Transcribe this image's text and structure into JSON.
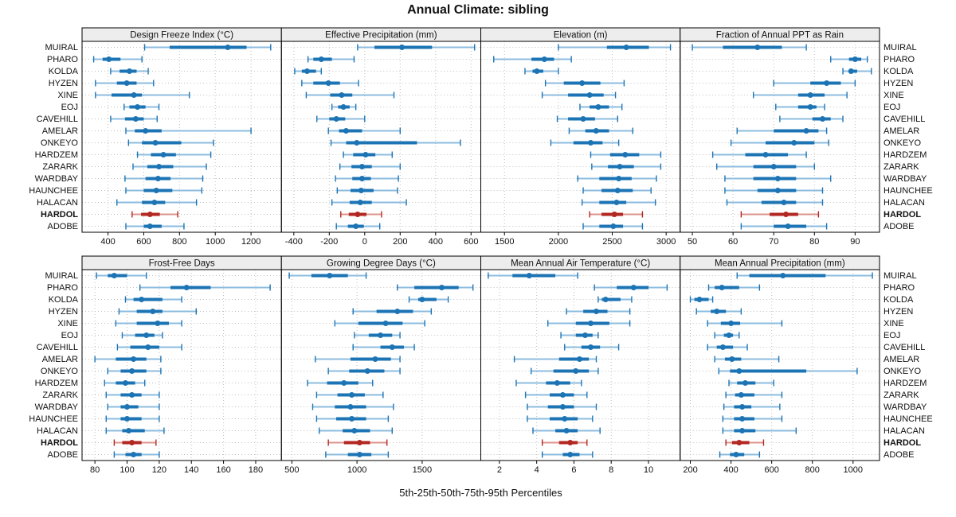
{
  "title": "Annual Climate: sibling",
  "xlabel": "5th-25th-50th-75th-95th Percentiles",
  "highlight_site": "HARDOL",
  "colors": {
    "series_blue": "#1c74b4",
    "series_blue_light": "#8dbcdf",
    "series_red": "#b22722",
    "series_red_light": "#dd938e",
    "strip_bg": "#ededed",
    "panel_border": "#000000",
    "grid": "#bfbfbf",
    "text": "#111111"
  },
  "sites": [
    "MUIRAL",
    "PHARO",
    "KOLDA",
    "HYZEN",
    "XINE",
    "EOJ",
    "CAVEHILL",
    "AMELAR",
    "ONKEYO",
    "HARDZEM",
    "ZARARK",
    "WARDBAY",
    "HAUNCHEE",
    "HALACAN",
    "HARDOL",
    "ADOBE"
  ],
  "chart_data": {
    "type": "dotplot-percentile-trellis",
    "percentile_order": [
      "p5",
      "p25",
      "p50",
      "p75",
      "p95"
    ],
    "layout": {
      "rows": 2,
      "cols": 4,
      "grid": "dotted",
      "y_labels_left_col": 0,
      "y_labels_right_col": 3
    },
    "panels": [
      {
        "strip_label": "Design Freeze Index (°C)",
        "xlim": [
          255,
          1370
        ],
        "ticks": [
          400,
          600,
          800,
          1000,
          1200
        ],
        "values": [
          [
            605,
            745,
            1070,
            1175,
            1310
          ],
          [
            320,
            370,
            405,
            470,
            590
          ],
          [
            415,
            465,
            520,
            560,
            625
          ],
          [
            330,
            450,
            505,
            560,
            655
          ],
          [
            330,
            420,
            545,
            590,
            855
          ],
          [
            490,
            520,
            565,
            610,
            685
          ],
          [
            415,
            495,
            555,
            600,
            675
          ],
          [
            500,
            550,
            610,
            700,
            1200
          ],
          [
            515,
            590,
            665,
            810,
            990
          ],
          [
            565,
            640,
            710,
            780,
            975
          ],
          [
            540,
            620,
            685,
            765,
            950
          ],
          [
            495,
            610,
            680,
            750,
            930
          ],
          [
            500,
            600,
            670,
            760,
            925
          ],
          [
            450,
            590,
            660,
            720,
            895
          ],
          [
            535,
            585,
            635,
            690,
            790
          ],
          [
            500,
            600,
            635,
            700,
            825
          ]
        ]
      },
      {
        "strip_label": "Effective Precipitation (mm)",
        "xlim": [
          -470,
          655
        ],
        "ticks": [
          -400,
          -200,
          0,
          200,
          400,
          600
        ],
        "values": [
          [
            -40,
            55,
            210,
            380,
            620
          ],
          [
            -320,
            -290,
            -245,
            -185,
            -60
          ],
          [
            -395,
            -355,
            -325,
            -275,
            -245
          ],
          [
            -355,
            -290,
            -205,
            -140,
            -35
          ],
          [
            -330,
            -195,
            -130,
            -70,
            165
          ],
          [
            -185,
            -150,
            -120,
            -85,
            -50
          ],
          [
            -270,
            -200,
            -160,
            -110,
            0
          ],
          [
            -205,
            -145,
            -105,
            -15,
            200
          ],
          [
            -190,
            -105,
            -45,
            295,
            540
          ],
          [
            -120,
            -65,
            5,
            60,
            155
          ],
          [
            -140,
            -75,
            -15,
            40,
            200
          ],
          [
            -165,
            -70,
            -15,
            35,
            190
          ],
          [
            -155,
            -80,
            -20,
            50,
            185
          ],
          [
            -185,
            -85,
            -25,
            40,
            235
          ],
          [
            -135,
            -90,
            -40,
            10,
            95
          ],
          [
            -160,
            -95,
            -50,
            -5,
            85
          ]
        ]
      },
      {
        "strip_label": "Elevation (m)",
        "xlim": [
          1280,
          3130
        ],
        "ticks": [
          1500,
          2000,
          2500,
          3000
        ],
        "values": [
          [
            2000,
            2450,
            2630,
            2840,
            3040
          ],
          [
            1400,
            1750,
            1870,
            1960,
            2120
          ],
          [
            1690,
            1760,
            1800,
            1860,
            2000
          ],
          [
            1880,
            2050,
            2220,
            2390,
            2610
          ],
          [
            1850,
            2090,
            2290,
            2420,
            2530
          ],
          [
            2200,
            2290,
            2370,
            2470,
            2590
          ],
          [
            1990,
            2090,
            2230,
            2340,
            2550
          ],
          [
            2100,
            2250,
            2350,
            2470,
            2690
          ],
          [
            1930,
            2140,
            2300,
            2410,
            2560
          ],
          [
            2300,
            2480,
            2620,
            2750,
            2950
          ],
          [
            2310,
            2460,
            2570,
            2700,
            2950
          ],
          [
            2180,
            2380,
            2560,
            2680,
            2910
          ],
          [
            2230,
            2400,
            2550,
            2690,
            2860
          ],
          [
            2220,
            2380,
            2540,
            2630,
            2900
          ],
          [
            2290,
            2400,
            2520,
            2600,
            2780
          ],
          [
            2230,
            2380,
            2510,
            2600,
            2780
          ]
        ]
      },
      {
        "strip_label": "Fraction of Annual PPT as Rain",
        "xlim": [
          47,
          96
        ],
        "ticks": [
          50,
          60,
          70,
          80,
          90
        ],
        "values": [
          [
            50,
            57.5,
            66,
            72,
            78
          ],
          [
            84,
            88.5,
            90,
            91.5,
            93
          ],
          [
            87,
            88.5,
            89,
            90.5,
            94
          ],
          [
            70,
            79,
            83,
            86.5,
            90
          ],
          [
            65,
            76,
            79,
            82.5,
            88
          ],
          [
            70.5,
            76,
            79,
            80.5,
            82.5
          ],
          [
            71.5,
            79.5,
            82,
            84,
            87
          ],
          [
            61,
            70,
            78,
            81,
            83
          ],
          [
            59.5,
            68,
            75,
            80,
            83.5
          ],
          [
            55,
            63,
            68,
            73.5,
            78
          ],
          [
            56,
            65,
            70,
            75.5,
            80
          ],
          [
            58,
            65,
            71,
            75.5,
            84
          ],
          [
            58,
            66,
            71,
            75.5,
            82
          ],
          [
            58.5,
            67,
            72.5,
            75.5,
            82
          ],
          [
            62,
            69,
            73,
            76,
            81
          ],
          [
            62,
            70,
            73.5,
            78,
            83
          ]
        ]
      },
      {
        "strip_label": "Frost-Free Days",
        "xlim": [
          72,
          196
        ],
        "ticks": [
          80,
          100,
          120,
          140,
          160,
          180
        ],
        "values": [
          [
            81,
            88,
            92,
            100,
            112
          ],
          [
            108,
            127,
            137,
            152,
            189
          ],
          [
            99,
            104,
            109,
            122,
            134
          ],
          [
            95,
            106,
            116,
            122,
            143
          ],
          [
            93,
            106,
            119,
            126,
            134
          ],
          [
            97,
            105,
            112,
            117,
            122
          ],
          [
            94,
            102,
            113,
            120,
            134
          ],
          [
            80,
            93,
            104,
            112,
            121
          ],
          [
            88,
            96,
            103,
            112,
            121
          ],
          [
            86,
            93,
            99,
            105,
            111
          ],
          [
            87,
            96,
            103,
            109,
            120
          ],
          [
            88,
            96,
            100,
            107,
            120
          ],
          [
            87,
            96,
            100,
            109,
            120
          ],
          [
            87,
            97,
            101,
            111,
            123
          ],
          [
            92,
            97,
            103,
            109,
            118
          ],
          [
            92,
            99,
            104,
            109,
            120
          ]
        ]
      },
      {
        "strip_label": "Growing Degree Days (°C)",
        "xlim": [
          420,
          1950
        ],
        "ticks": [
          500,
          1000,
          1500
        ],
        "values": [
          [
            480,
            650,
            790,
            930,
            1070
          ],
          [
            1310,
            1440,
            1650,
            1780,
            1890
          ],
          [
            1400,
            1470,
            1500,
            1610,
            1700
          ],
          [
            970,
            1150,
            1310,
            1430,
            1570
          ],
          [
            830,
            1010,
            1220,
            1350,
            1520
          ],
          [
            980,
            1090,
            1180,
            1270,
            1330
          ],
          [
            970,
            1180,
            1270,
            1360,
            1440
          ],
          [
            680,
            950,
            1140,
            1260,
            1330
          ],
          [
            780,
            940,
            1080,
            1210,
            1330
          ],
          [
            620,
            770,
            900,
            1010,
            1120
          ],
          [
            690,
            850,
            960,
            1060,
            1200
          ],
          [
            660,
            830,
            950,
            1070,
            1280
          ],
          [
            690,
            840,
            960,
            1070,
            1240
          ],
          [
            710,
            890,
            980,
            1100,
            1270
          ],
          [
            780,
            900,
            1020,
            1100,
            1230
          ],
          [
            760,
            930,
            1020,
            1110,
            1240
          ]
        ]
      },
      {
        "strip_label": "Mean Annual Air Temperature (°C)",
        "xlim": [
          1.0,
          11.7
        ],
        "ticks": [
          2,
          4,
          6,
          8,
          10
        ],
        "values": [
          [
            1.4,
            2.7,
            3.6,
            5.0,
            6.2
          ],
          [
            7.1,
            8.3,
            9.2,
            10.0,
            11.0
          ],
          [
            7.3,
            7.5,
            7.7,
            8.5,
            9.1
          ],
          [
            5.6,
            6.5,
            7.2,
            7.8,
            9.0
          ],
          [
            4.6,
            6.1,
            6.9,
            7.9,
            9.0
          ],
          [
            5.3,
            6.1,
            6.6,
            7.0,
            7.3
          ],
          [
            5.5,
            6.4,
            6.9,
            7.4,
            8.4
          ],
          [
            2.8,
            5.2,
            6.3,
            6.8,
            7.2
          ],
          [
            3.7,
            4.9,
            6.1,
            6.8,
            7.3
          ],
          [
            2.9,
            4.5,
            5.1,
            5.8,
            6.4
          ],
          [
            3.4,
            4.7,
            5.4,
            6.0,
            6.7
          ],
          [
            3.5,
            4.6,
            5.4,
            6.0,
            7.2
          ],
          [
            3.5,
            4.7,
            5.5,
            6.2,
            7.0
          ],
          [
            3.8,
            5.0,
            5.6,
            6.2,
            7.4
          ],
          [
            4.3,
            5.2,
            5.8,
            6.2,
            6.7
          ],
          [
            4.3,
            5.4,
            5.8,
            6.3,
            7.0
          ]
        ]
      },
      {
        "strip_label": "Mean Annual Precipitation (mm)",
        "xlim": [
          150,
          1130
        ],
        "ticks": [
          200,
          400,
          600,
          800,
          1000
        ],
        "values": [
          [
            430,
            490,
            655,
            865,
            1095
          ],
          [
            290,
            320,
            355,
            440,
            540
          ],
          [
            200,
            220,
            245,
            290,
            310
          ],
          [
            230,
            300,
            330,
            375,
            450
          ],
          [
            285,
            350,
            400,
            445,
            650
          ],
          [
            320,
            365,
            390,
            410,
            440
          ],
          [
            285,
            330,
            360,
            410,
            480
          ],
          [
            320,
            370,
            405,
            450,
            635
          ],
          [
            340,
            395,
            440,
            770,
            1020
          ],
          [
            390,
            430,
            470,
            520,
            610
          ],
          [
            375,
            420,
            450,
            515,
            650
          ],
          [
            365,
            415,
            455,
            500,
            640
          ],
          [
            360,
            415,
            455,
            515,
            650
          ],
          [
            360,
            415,
            455,
            520,
            720
          ],
          [
            375,
            405,
            440,
            490,
            560
          ],
          [
            345,
            395,
            425,
            465,
            540
          ]
        ]
      }
    ]
  }
}
